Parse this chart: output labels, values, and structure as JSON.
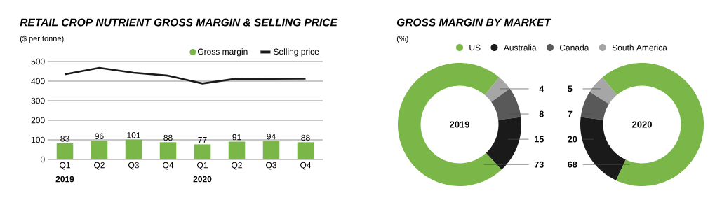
{
  "chart_data": [
    {
      "type": "bar",
      "title": "RETAIL CROP NUTRIENT GROSS MARGIN & SELLING PRICE",
      "ylabel": "($ per tonne)",
      "categories": [
        "Q1",
        "Q2",
        "Q3",
        "Q4",
        "Q1",
        "Q2",
        "Q3",
        "Q4"
      ],
      "series": [
        {
          "name": "Gross margin",
          "type": "bar",
          "color": "#7ab648",
          "values": [
            83,
            96,
            101,
            88,
            77,
            91,
            94,
            88
          ],
          "value_labels": [
            "83",
            "96",
            "101",
            "88",
            "77",
            "91",
            "94",
            "88"
          ]
        },
        {
          "name": "Selling price",
          "type": "line",
          "color": "#1a1a1a",
          "values": [
            435,
            468,
            443,
            428,
            388,
            413,
            412,
            413
          ]
        }
      ],
      "annotations": [
        "2019",
        "2020"
      ],
      "ylim": [
        0,
        500
      ],
      "yticks": [
        0,
        100,
        200,
        300,
        400,
        500
      ],
      "grid": "y",
      "legend": "top right"
    },
    {
      "type": "donut",
      "title": "GROSS MARGIN BY MARKET",
      "subtitle": "(%)",
      "categories": [
        "US",
        "Australia",
        "Canada",
        "South America"
      ],
      "colors": [
        "#7ab648",
        "#1a1a1a",
        "#595959",
        "#a6a6a6"
      ],
      "series": [
        {
          "name": "2019",
          "values": [
            73,
            15,
            8,
            4
          ]
        },
        {
          "name": "2020",
          "values": [
            68,
            20,
            7,
            5
          ]
        }
      ],
      "data_labels": true,
      "legend": "top"
    }
  ]
}
